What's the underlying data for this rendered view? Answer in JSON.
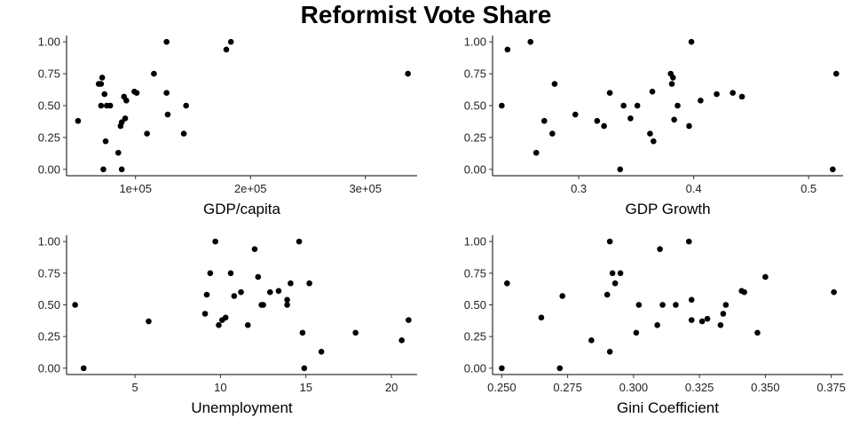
{
  "title": "Reformist Vote Share",
  "chart_data": [
    {
      "type": "scatter",
      "xlabel": "GDP/capita",
      "ylabel": "",
      "xlim": [
        40000,
        345000
      ],
      "ylim": [
        -0.05,
        1.05
      ],
      "xticks": [
        100000,
        200000,
        300000
      ],
      "xtick_labels": [
        "1e+05",
        "2e+05",
        "3e+05"
      ],
      "yticks": [
        0,
        0.25,
        0.5,
        0.75,
        1
      ],
      "ytick_labels": [
        "0.00",
        "0.25",
        "0.50",
        "0.75",
        "1.00"
      ],
      "grid": false,
      "points": [
        {
          "x": 50000,
          "y": 0.38
        },
        {
          "x": 68000,
          "y": 0.67
        },
        {
          "x": 70000,
          "y": 0.67
        },
        {
          "x": 71000,
          "y": 0.72
        },
        {
          "x": 70000,
          "y": 0.5
        },
        {
          "x": 72000,
          "y": 0.0
        },
        {
          "x": 73000,
          "y": 0.59
        },
        {
          "x": 74000,
          "y": 0.22
        },
        {
          "x": 75000,
          "y": 0.5
        },
        {
          "x": 78000,
          "y": 0.5
        },
        {
          "x": 85000,
          "y": 0.13
        },
        {
          "x": 87000,
          "y": 0.34
        },
        {
          "x": 88000,
          "y": 0.37
        },
        {
          "x": 88000,
          "y": 0.0
        },
        {
          "x": 90000,
          "y": 0.57
        },
        {
          "x": 91000,
          "y": 0.4
        },
        {
          "x": 92000,
          "y": 0.54
        },
        {
          "x": 99000,
          "y": 0.61
        },
        {
          "x": 101000,
          "y": 0.6
        },
        {
          "x": 110000,
          "y": 0.28
        },
        {
          "x": 116000,
          "y": 0.75
        },
        {
          "x": 127000,
          "y": 1.0
        },
        {
          "x": 127000,
          "y": 0.6
        },
        {
          "x": 128000,
          "y": 0.43
        },
        {
          "x": 142000,
          "y": 0.28
        },
        {
          "x": 144000,
          "y": 0.5
        },
        {
          "x": 179000,
          "y": 0.94
        },
        {
          "x": 183000,
          "y": 1.0
        },
        {
          "x": 337000,
          "y": 0.75
        }
      ]
    },
    {
      "type": "scatter",
      "xlabel": "GDP Growth",
      "ylabel": "",
      "xlim": [
        0.225,
        0.53
      ],
      "ylim": [
        -0.05,
        1.05
      ],
      "xticks": [
        0.3,
        0.4,
        0.5
      ],
      "xtick_labels": [
        "0.3",
        "0.4",
        "0.5"
      ],
      "yticks": [
        0,
        0.25,
        0.5,
        0.75,
        1
      ],
      "ytick_labels": [
        "0.00",
        "0.25",
        "0.50",
        "0.75",
        "1.00"
      ],
      "grid": false,
      "points": [
        {
          "x": 0.233,
          "y": 0.5
        },
        {
          "x": 0.238,
          "y": 0.94
        },
        {
          "x": 0.258,
          "y": 1.0
        },
        {
          "x": 0.263,
          "y": 0.13
        },
        {
          "x": 0.27,
          "y": 0.38
        },
        {
          "x": 0.277,
          "y": 0.28
        },
        {
          "x": 0.279,
          "y": 0.67
        },
        {
          "x": 0.297,
          "y": 0.43
        },
        {
          "x": 0.316,
          "y": 0.38
        },
        {
          "x": 0.322,
          "y": 0.34
        },
        {
          "x": 0.327,
          "y": 0.6
        },
        {
          "x": 0.336,
          "y": 0.0
        },
        {
          "x": 0.339,
          "y": 0.5
        },
        {
          "x": 0.345,
          "y": 0.4
        },
        {
          "x": 0.351,
          "y": 0.5
        },
        {
          "x": 0.362,
          "y": 0.28
        },
        {
          "x": 0.364,
          "y": 0.61
        },
        {
          "x": 0.365,
          "y": 0.22
        },
        {
          "x": 0.38,
          "y": 0.75
        },
        {
          "x": 0.381,
          "y": 0.67
        },
        {
          "x": 0.382,
          "y": 0.72
        },
        {
          "x": 0.383,
          "y": 0.39
        },
        {
          "x": 0.386,
          "y": 0.5
        },
        {
          "x": 0.396,
          "y": 0.34
        },
        {
          "x": 0.398,
          "y": 1.0
        },
        {
          "x": 0.406,
          "y": 0.54
        },
        {
          "x": 0.42,
          "y": 0.59
        },
        {
          "x": 0.434,
          "y": 0.6
        },
        {
          "x": 0.442,
          "y": 0.57
        },
        {
          "x": 0.521,
          "y": 0.0
        },
        {
          "x": 0.524,
          "y": 0.75
        }
      ]
    },
    {
      "type": "scatter",
      "xlabel": "Unemployment",
      "ylabel": "",
      "xlim": [
        1.0,
        21.5
      ],
      "ylim": [
        -0.05,
        1.05
      ],
      "xticks": [
        5,
        10,
        15,
        20
      ],
      "xtick_labels": [
        "5",
        "10",
        "15",
        "20"
      ],
      "yticks": [
        0,
        0.25,
        0.5,
        0.75,
        1
      ],
      "ytick_labels": [
        "0.00",
        "0.25",
        "0.50",
        "0.75",
        "1.00"
      ],
      "grid": false,
      "points": [
        {
          "x": 1.5,
          "y": 0.5
        },
        {
          "x": 2.0,
          "y": 0.0
        },
        {
          "x": 5.8,
          "y": 0.37
        },
        {
          "x": 9.1,
          "y": 0.43
        },
        {
          "x": 9.2,
          "y": 0.58
        },
        {
          "x": 9.4,
          "y": 0.75
        },
        {
          "x": 9.7,
          "y": 1.0
        },
        {
          "x": 9.9,
          "y": 0.34
        },
        {
          "x": 10.1,
          "y": 0.38
        },
        {
          "x": 10.3,
          "y": 0.4
        },
        {
          "x": 10.6,
          "y": 0.75
        },
        {
          "x": 10.8,
          "y": 0.57
        },
        {
          "x": 11.2,
          "y": 0.6
        },
        {
          "x": 11.6,
          "y": 0.34
        },
        {
          "x": 12.0,
          "y": 0.94
        },
        {
          "x": 12.2,
          "y": 0.72
        },
        {
          "x": 12.4,
          "y": 0.5
        },
        {
          "x": 12.5,
          "y": 0.5
        },
        {
          "x": 12.9,
          "y": 0.6
        },
        {
          "x": 13.4,
          "y": 0.61
        },
        {
          "x": 13.9,
          "y": 0.54
        },
        {
          "x": 13.9,
          "y": 0.5
        },
        {
          "x": 14.1,
          "y": 0.67
        },
        {
          "x": 14.6,
          "y": 1.0
        },
        {
          "x": 14.8,
          "y": 0.28
        },
        {
          "x": 14.9,
          "y": 0.0
        },
        {
          "x": 15.2,
          "y": 0.67
        },
        {
          "x": 15.9,
          "y": 0.13
        },
        {
          "x": 17.9,
          "y": 0.28
        },
        {
          "x": 20.6,
          "y": 0.22
        },
        {
          "x": 21.0,
          "y": 0.38
        }
      ]
    },
    {
      "type": "scatter",
      "xlabel": "Gini Coefficient",
      "ylabel": "",
      "xlim": [
        0.2465,
        0.3795
      ],
      "ylim": [
        -0.05,
        1.05
      ],
      "xticks": [
        0.25,
        0.275,
        0.3,
        0.325,
        0.35,
        0.375
      ],
      "xtick_labels": [
        "0.250",
        "0.275",
        "0.300",
        "0.325",
        "0.350",
        "0.375"
      ],
      "yticks": [
        0,
        0.25,
        0.5,
        0.75,
        1
      ],
      "ytick_labels": [
        "0.00",
        "0.25",
        "0.50",
        "0.75",
        "1.00"
      ],
      "grid": false,
      "points": [
        {
          "x": 0.25,
          "y": 0.0
        },
        {
          "x": 0.252,
          "y": 0.67
        },
        {
          "x": 0.265,
          "y": 0.4
        },
        {
          "x": 0.272,
          "y": 0.0
        },
        {
          "x": 0.273,
          "y": 0.57
        },
        {
          "x": 0.284,
          "y": 0.22
        },
        {
          "x": 0.29,
          "y": 0.58
        },
        {
          "x": 0.291,
          "y": 1.0
        },
        {
          "x": 0.291,
          "y": 0.13
        },
        {
          "x": 0.292,
          "y": 0.75
        },
        {
          "x": 0.293,
          "y": 0.67
        },
        {
          "x": 0.295,
          "y": 0.75
        },
        {
          "x": 0.301,
          "y": 0.28
        },
        {
          "x": 0.302,
          "y": 0.5
        },
        {
          "x": 0.309,
          "y": 0.34
        },
        {
          "x": 0.31,
          "y": 0.94
        },
        {
          "x": 0.311,
          "y": 0.5
        },
        {
          "x": 0.316,
          "y": 0.5
        },
        {
          "x": 0.321,
          "y": 1.0
        },
        {
          "x": 0.322,
          "y": 0.54
        },
        {
          "x": 0.322,
          "y": 0.38
        },
        {
          "x": 0.326,
          "y": 0.37
        },
        {
          "x": 0.328,
          "y": 0.39
        },
        {
          "x": 0.333,
          "y": 0.34
        },
        {
          "x": 0.334,
          "y": 0.43
        },
        {
          "x": 0.335,
          "y": 0.5
        },
        {
          "x": 0.341,
          "y": 0.61
        },
        {
          "x": 0.342,
          "y": 0.6
        },
        {
          "x": 0.347,
          "y": 0.28
        },
        {
          "x": 0.35,
          "y": 0.72
        },
        {
          "x": 0.376,
          "y": 0.6
        }
      ]
    }
  ]
}
